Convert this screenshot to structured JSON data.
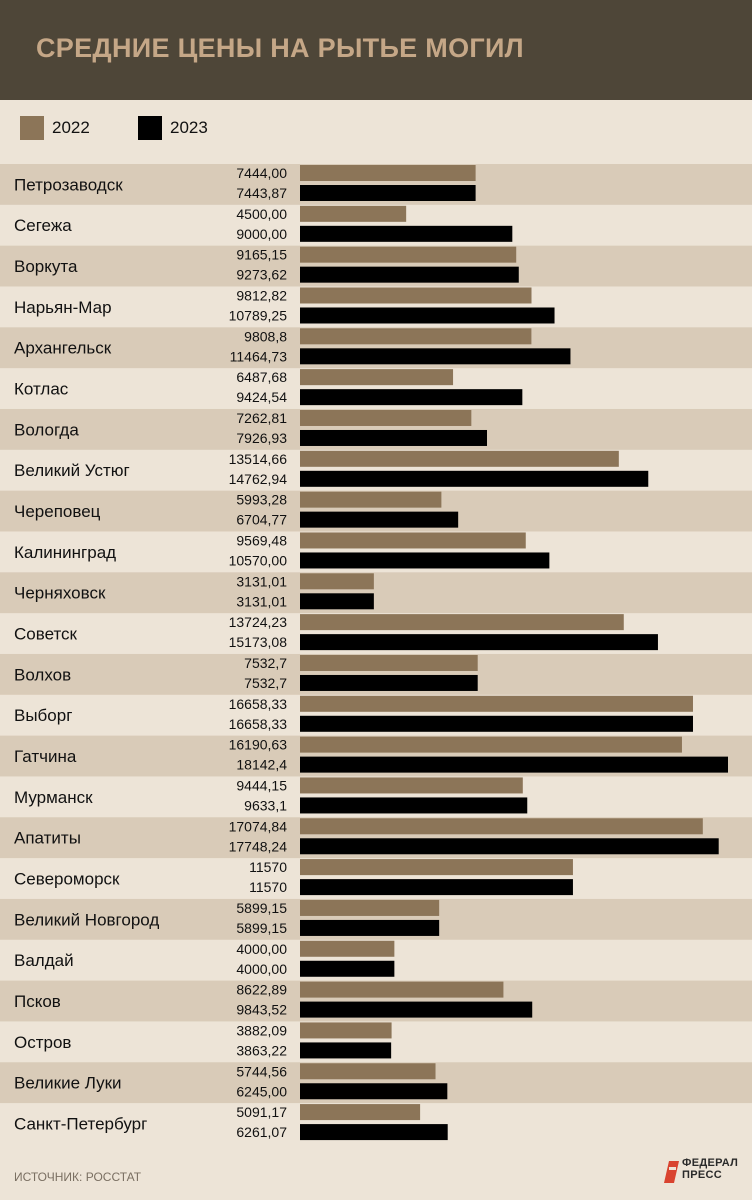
{
  "header": {
    "title": "СРЕДНИЕ ЦЕНЫ НА РЫТЬЕ МОГИЛ"
  },
  "legend": [
    {
      "label": "2022",
      "color": "#8c7558"
    },
    {
      "label": "2023",
      "color": "#000000"
    }
  ],
  "footer": {
    "source": "ИСТОЧНИК: РОССТАТ",
    "logo_line1": "ФЕДЕРАЛ",
    "logo_line2": "ПРЕСС"
  },
  "colors": {
    "stripe": "#d9cbb8",
    "background": "#ede4d7",
    "header": "#4e4638",
    "title": "#c5a787"
  },
  "chart_data": {
    "type": "bar",
    "orientation": "horizontal",
    "title": "СРЕДНИЕ ЦЕНЫ НА РЫТЬЕ МОГИЛ",
    "categories": [
      "Петрозаводск",
      "Сегежа",
      "Воркута",
      "Нарьян-Мар",
      "Архангельск",
      "Котлас",
      "Вологда",
      "Великий Устюг",
      "Череповец",
      "Калининград",
      "Черняховск",
      "Советск",
      "Волхов",
      "Выборг",
      "Гатчина",
      "Мурманск",
      "Апатиты",
      "Североморск",
      "Великий Новгород",
      "Валдай",
      "Псков",
      "Остров",
      "Великие Луки",
      "Санкт-Петербург"
    ],
    "series": [
      {
        "name": "2022",
        "color": "#8c7558",
        "values": [
          7444.0,
          4500.0,
          9165.15,
          9812.82,
          9808.8,
          6487.68,
          7262.81,
          13514.66,
          5993.28,
          9569.48,
          3131.01,
          13724.23,
          7532.7,
          16658.33,
          16190.63,
          9444.15,
          17074.84,
          11570,
          5899.15,
          4000.0,
          8622.89,
          3882.09,
          5744.56,
          5091.17
        ],
        "labels": [
          "7444,00",
          "4500,00",
          "9165,15",
          "9812,82",
          "9808,8",
          "6487,68",
          "7262,81",
          "13514,66",
          "5993,28",
          "9569,48",
          "3131,01",
          "13724,23",
          "7532,7",
          "16658,33",
          "16190,63",
          "9444,15",
          "17074,84",
          "11570",
          "5899,15",
          "4000,00",
          "8622,89",
          "3882,09",
          "5744,56",
          "5091,17"
        ]
      },
      {
        "name": "2023",
        "color": "#000000",
        "values": [
          7443.87,
          9000.0,
          9273.62,
          10789.25,
          11464.73,
          9424.54,
          7926.93,
          14762.94,
          6704.77,
          10570.0,
          3131.01,
          15173.08,
          7532.7,
          16658.33,
          18142.4,
          9633.1,
          17748.24,
          11570,
          5899.15,
          4000.0,
          9843.52,
          3863.22,
          6245.0,
          6261.07
        ],
        "labels": [
          "7443,87",
          "9000,00",
          "9273,62",
          "10789,25",
          "11464,73",
          "9424,54",
          "7926,93",
          "14762,94",
          "6704,77",
          "10570,00",
          "3131,01",
          "15173,08",
          "7532,7",
          "16658,33",
          "18142,4",
          "9633,1",
          "17748,24",
          "11570",
          "5899,15",
          "4000,00",
          "9843,52",
          "3863,22",
          "6245,00",
          "6261,07"
        ]
      }
    ],
    "xlim": [
      0,
      18142.4
    ],
    "grid": false,
    "legend_position": "top-left"
  }
}
